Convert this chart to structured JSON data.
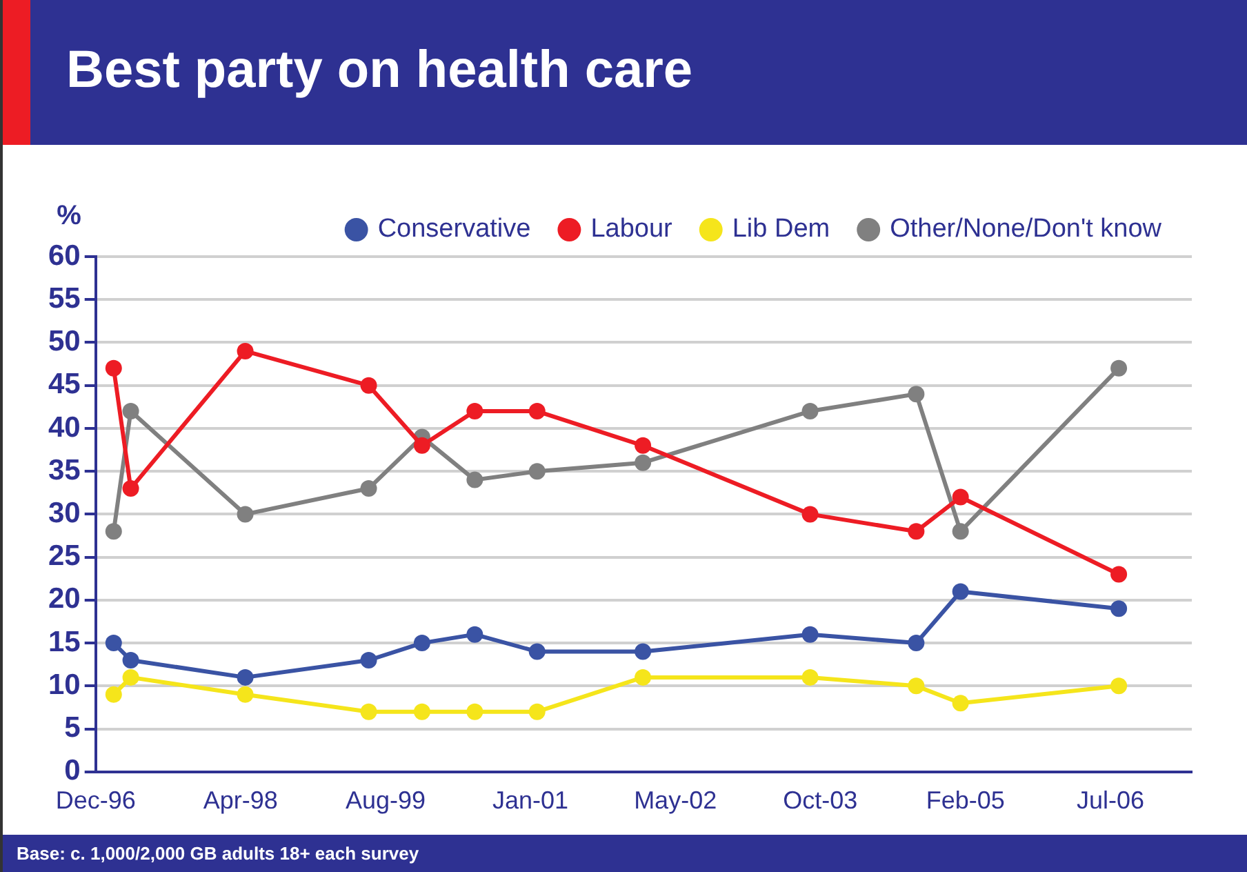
{
  "chart_data": {
    "type": "line",
    "title": "Best party on health care",
    "ylabel": "%",
    "x": [
      "1997-02",
      "1997-04",
      "1998-05",
      "1999-07",
      "2000-01",
      "2000-07",
      "2001-02",
      "2002-02",
      "2003-09",
      "2004-09",
      "2005-02",
      "2006-08"
    ],
    "series": [
      {
        "name": "Conservative",
        "color": "#3a53a4",
        "values": [
          15,
          13,
          11,
          13,
          15,
          16,
          14,
          14,
          16,
          15,
          21,
          19
        ]
      },
      {
        "name": "Labour",
        "color": "#ed1c24",
        "values": [
          47,
          33,
          49,
          45,
          38,
          42,
          42,
          38,
          30,
          28,
          32,
          23
        ]
      },
      {
        "name": "Lib Dem",
        "color": "#f5e51b",
        "values": [
          9,
          11,
          9,
          7,
          7,
          7,
          7,
          11,
          11,
          10,
          8,
          10
        ]
      },
      {
        "name": "Other/None/Don't know",
        "color": "#808080",
        "values": [
          28,
          42,
          30,
          33,
          39,
          34,
          35,
          36,
          42,
          44,
          28,
          47
        ]
      }
    ],
    "xlim": [
      "1996-12-01",
      "2007-04-10"
    ],
    "xticks": [
      {
        "value": "1996-12-01",
        "label": "Dec-96"
      },
      {
        "value": "1998-04-15",
        "label": "Apr-98"
      },
      {
        "value": "1999-08-28",
        "label": "Aug-99"
      },
      {
        "value": "2001-01-09",
        "label": "Jan-01"
      },
      {
        "value": "2002-05-24",
        "label": "May-02"
      },
      {
        "value": "2003-10-06",
        "label": "Oct-03"
      },
      {
        "value": "2005-02-18",
        "label": "Feb-05"
      },
      {
        "value": "2006-07-03",
        "label": "Jul-06"
      }
    ],
    "ylim": [
      0,
      60
    ],
    "yticks": [
      0,
      5,
      10,
      15,
      20,
      25,
      30,
      35,
      40,
      45,
      50,
      55,
      60
    ],
    "grid": "y",
    "legend": "top",
    "marker": "circle",
    "line_style": "solid",
    "annotations": [
      "Base: c. 1,000/2,000 GB adults 18+ each survey"
    ]
  }
}
